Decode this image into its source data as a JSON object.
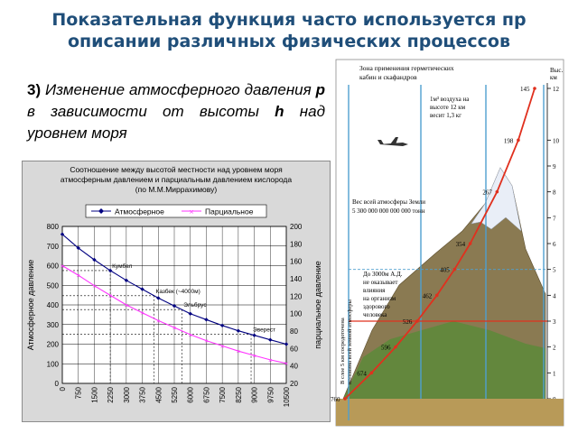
{
  "slide": {
    "title_line1": "Показательная функция часто используется пр",
    "title_line2": "описании различных физических процессов",
    "section_number": "3)",
    "section_text_1": " Изменение атмосферного давления ",
    "section_var_p": "p",
    "section_text_2": " в зависимости от высоты ",
    "section_var_h": "h",
    "section_text_3": " над уровнем моря"
  },
  "chart_data": [
    {
      "type": "line",
      "title": "Соотношение между высотой местности над уровнем моря атмосферным давлением и парциальным давлением кислорода (по М.М.Миррахимову)",
      "title_line1": "Соотношение между высотой местности над уровнем моря",
      "title_line2": "атмосферным давлением и парциальным давлением кислорода",
      "title_line3": "(по М.М.Миррахимову)",
      "ylabel": "Атмосферное давление",
      "y2label": "парциальное давление",
      "ylim": [
        0,
        800
      ],
      "y2lim": [
        20,
        200
      ],
      "grid": true,
      "legend": "top",
      "x": [
        0,
        750,
        1500,
        2250,
        3000,
        3750,
        4500,
        5250,
        6000,
        6750,
        7500,
        8250,
        9000,
        9750,
        10500
      ],
      "x_tick_labels": [
        "0",
        "750",
        "1500",
        "2250",
        "3000",
        "3750",
        "4500",
        "5250",
        "6000",
        "6750",
        "7500",
        "8250",
        "9000",
        "9750",
        "10500"
      ],
      "y_tick_labels": [
        "0",
        "100",
        "200",
        "300",
        "400",
        "500",
        "600",
        "700",
        "800"
      ],
      "y2_tick_labels": [
        "20",
        "40",
        "60",
        "80",
        "100",
        "120",
        "140",
        "160",
        "180",
        "200"
      ],
      "series": [
        {
          "name": "Атмосферное",
          "axis": "left",
          "color": "#000080",
          "values": [
            760,
            690,
            630,
            575,
            525,
            480,
            435,
            395,
            355,
            325,
            295,
            268,
            245,
            222,
            200
          ]
        },
        {
          "name": "Парциальное",
          "axis": "right",
          "color": "#ff33ff",
          "values": [
            155,
            144,
            132,
            121,
            110,
            101,
            92,
            84,
            76,
            69,
            63,
            57,
            52,
            47,
            43
          ]
        }
      ],
      "annotations": [
        {
          "text": "Кумбел",
          "x": 2250
        },
        {
          "text": "Казбек (~4000м)",
          "x": 4300
        },
        {
          "text": "Эльбрус",
          "x": 5600
        },
        {
          "text": "Эверест",
          "x": 8850
        }
      ]
    },
    {
      "type": "line",
      "axis_ticks": [
        "0",
        "1",
        "2",
        "3",
        "4",
        "5",
        "6",
        "7",
        "8",
        "9",
        "10",
        "12"
      ],
      "axis_unit": "Выс. км",
      "series": [
        {
          "name": "pressure",
          "color": "#e0301e",
          "x": [
            760,
            674,
            596,
            526,
            462,
            405,
            354,
            267,
            198,
            145
          ],
          "y": [
            0,
            1,
            2,
            3,
            4,
            5,
            6,
            8,
            10,
            12
          ]
        }
      ],
      "point_labels": [
        "760",
        "674",
        "596",
        "526",
        "462",
        "405",
        "354",
        "267",
        "198",
        "145"
      ],
      "labels": {
        "top_zone_1": "Зона применения герметических",
        "top_zone_2": "кабин и скафандров",
        "height_unit": "Выс.",
        "height_unit_2": "км",
        "air_1": "1м³ воздуха на",
        "air_2": "высоте 12 км",
        "air_3": "весит 1,3 кг",
        "weight_1": "Вес всей атмосферы Земли",
        "weight_2": "5 300 000 000 000 000 тонн",
        "effect_1": "До 3000м А.Д.",
        "effect_2": "не оказывает",
        "effect_3": "влияния",
        "effect_4": "на организм",
        "effect_5": "здорового",
        "effect_6": "человека",
        "vertical_1": "В слое 5 км сосредоточена",
        "vertical_2": "половина всей земной атмосферы"
      }
    }
  ],
  "colors": {
    "title": "#1f4e79",
    "chart_bg": "#d9d9d9",
    "plot_bg": "#ffffff",
    "atmospheric": "#000080",
    "partial": "#ff33ff",
    "pressure_curve": "#e0301e",
    "sky": "#ffffff",
    "mountain_snow": "#e9eef7",
    "mountain_rock": "#8a7a52",
    "mountain_green": "#5c8a3a",
    "ground": "#b89a58",
    "vertical_lines": "#4f9fcf"
  },
  "icons": [
    "airplane-icon",
    "mountain-icon"
  ]
}
